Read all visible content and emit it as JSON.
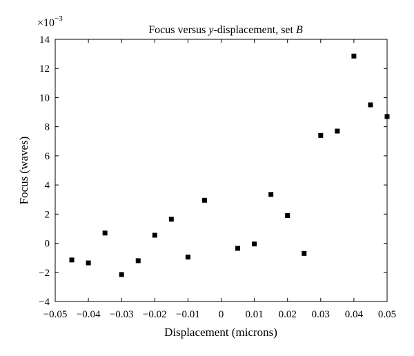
{
  "chart_data": {
    "type": "scatter",
    "title": "Focus versus y-displacement, set B",
    "title_parts": {
      "prefix": "Focus versus ",
      "italic_var": "y",
      "middle": "-displacement, set ",
      "italic_set": "B"
    },
    "xlabel": "Displacement (microns)",
    "ylabel": "Focus (waves)",
    "y_multiplier": {
      "base": "×10",
      "exponent": "−3"
    },
    "xlim": [
      -0.05,
      0.05
    ],
    "ylim": [
      -4,
      14
    ],
    "x_ticks": [
      {
        "value": -0.05,
        "label": "−0.05"
      },
      {
        "value": -0.04,
        "label": "−0.04"
      },
      {
        "value": -0.03,
        "label": "−0.03"
      },
      {
        "value": -0.02,
        "label": "−0.02"
      },
      {
        "value": -0.01,
        "label": "−0.01"
      },
      {
        "value": 0,
        "label": "0"
      },
      {
        "value": 0.01,
        "label": "0.01"
      },
      {
        "value": 0.02,
        "label": "0.02"
      },
      {
        "value": 0.03,
        "label": "0.03"
      },
      {
        "value": 0.04,
        "label": "0.04"
      },
      {
        "value": 0.05,
        "label": "0.05"
      }
    ],
    "y_ticks": [
      {
        "value": -4,
        "label": "−4"
      },
      {
        "value": -2,
        "label": "−2"
      },
      {
        "value": 0,
        "label": "0"
      },
      {
        "value": 2,
        "label": "2"
      },
      {
        "value": 4,
        "label": "4"
      },
      {
        "value": 6,
        "label": "6"
      },
      {
        "value": 8,
        "label": "8"
      },
      {
        "value": 10,
        "label": "10"
      },
      {
        "value": 12,
        "label": "12"
      },
      {
        "value": 14,
        "label": "14"
      }
    ],
    "grid": false,
    "marker": "square",
    "marker_color": "#000000",
    "points": [
      {
        "x": -0.045,
        "y": -1.15
      },
      {
        "x": -0.04,
        "y": -1.35
      },
      {
        "x": -0.035,
        "y": 0.7
      },
      {
        "x": -0.03,
        "y": -2.15
      },
      {
        "x": -0.025,
        "y": -1.2
      },
      {
        "x": -0.02,
        "y": 0.55
      },
      {
        "x": -0.015,
        "y": 1.65
      },
      {
        "x": -0.01,
        "y": -0.95
      },
      {
        "x": -0.005,
        "y": 2.95
      },
      {
        "x": 0.005,
        "y": -0.35
      },
      {
        "x": 0.01,
        "y": -0.05
      },
      {
        "x": 0.015,
        "y": 3.35
      },
      {
        "x": 0.02,
        "y": 1.9
      },
      {
        "x": 0.025,
        "y": -0.7
      },
      {
        "x": 0.03,
        "y": 7.4
      },
      {
        "x": 0.035,
        "y": 7.7
      },
      {
        "x": 0.04,
        "y": 12.85
      },
      {
        "x": 0.045,
        "y": 9.5
      },
      {
        "x": 0.05,
        "y": 8.7
      }
    ]
  }
}
